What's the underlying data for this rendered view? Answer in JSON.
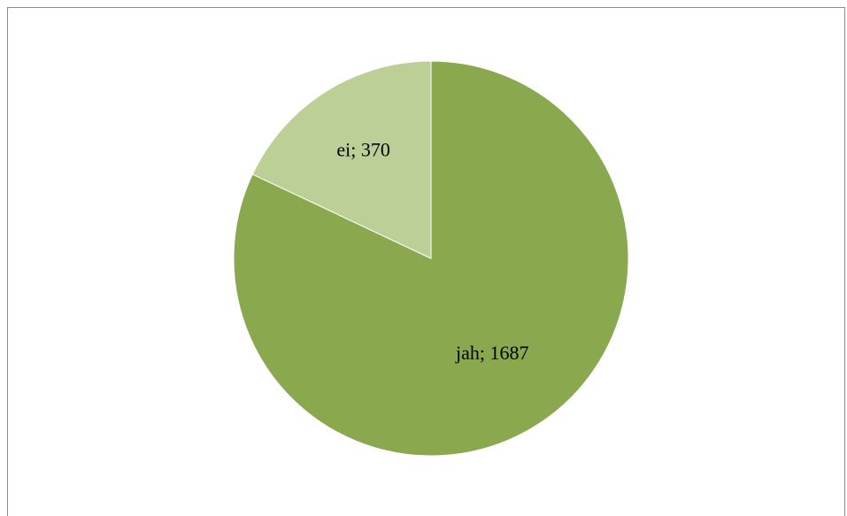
{
  "chart_data": {
    "type": "pie",
    "title": "",
    "categories": [
      "jah",
      "ei"
    ],
    "values": [
      1687,
      370
    ],
    "colors": [
      "#8aa84e",
      "#bbcf97"
    ],
    "data_labels": [
      "jah; 1687",
      "ei; 370"
    ],
    "start_angle": "12 o'clock",
    "direction": "clockwise",
    "legend": "none"
  }
}
